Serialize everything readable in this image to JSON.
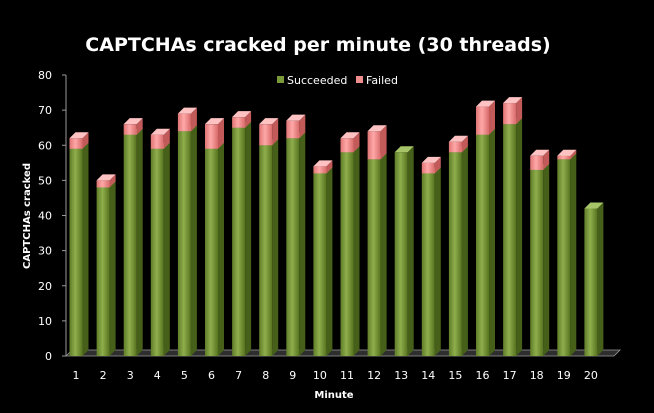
{
  "chart_data": {
    "type": "bar",
    "stacked": true,
    "title": "CAPTCHAs cracked per minute (30 threads)",
    "xlabel": "Minute",
    "ylabel": "CAPTCHAs cracked",
    "ylim": [
      0,
      80
    ],
    "yticks": [
      "0",
      "10",
      "20",
      "30",
      "40",
      "50",
      "60",
      "70",
      "80"
    ],
    "categories": [
      "1",
      "2",
      "3",
      "4",
      "5",
      "6",
      "7",
      "8",
      "9",
      "10",
      "11",
      "12",
      "13",
      "14",
      "15",
      "16",
      "17",
      "18",
      "19",
      "20"
    ],
    "series": [
      {
        "name": "Succeeded",
        "color": "#7a9a3a",
        "values": [
          59,
          48,
          63,
          59,
          64,
          59,
          65,
          60,
          62,
          52,
          58,
          56,
          58,
          52,
          58,
          63,
          66,
          53,
          56,
          42
        ]
      },
      {
        "name": "Failed",
        "color": "#f08e8e",
        "values": [
          3,
          2,
          3,
          4,
          5,
          7,
          3,
          6,
          5,
          2,
          4,
          8,
          0,
          3,
          3,
          8,
          6,
          4,
          1,
          0
        ]
      }
    ],
    "grid": false,
    "legend_position": "top-center",
    "background": "#000000"
  }
}
